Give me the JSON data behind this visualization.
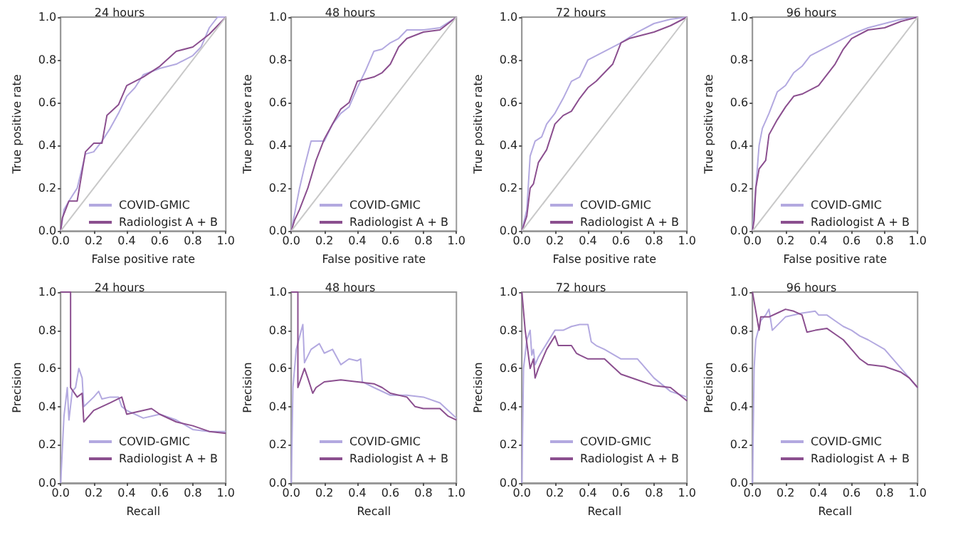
{
  "chart_data": [
    {
      "type": "line",
      "title": "24 hours",
      "xlabel": "False positive rate",
      "ylabel": "True positive rate",
      "xlim": [
        0,
        1
      ],
      "ylim": [
        0,
        1
      ],
      "xticks": [
        {
          "value": 0,
          "label": "0.0"
        },
        {
          "value": 0.2,
          "label": "0.2"
        },
        {
          "value": 0.4,
          "label": "0.4"
        },
        {
          "value": 0.6,
          "label": "0.6"
        },
        {
          "value": 0.8,
          "label": "0.8"
        },
        {
          "value": 1,
          "label": "1.0"
        }
      ],
      "yticks": [
        {
          "value": 0,
          "label": "0.0"
        },
        {
          "value": 0.2,
          "label": "0.2"
        },
        {
          "value": 0.4,
          "label": "0.4"
        },
        {
          "value": 0.6,
          "label": "0.6"
        },
        {
          "value": 0.8,
          "label": "0.8"
        },
        {
          "value": 1,
          "label": "1.0"
        }
      ],
      "legend": "bottom right",
      "grid": false,
      "series": [
        {
          "name": "COVID-GMIC",
          "color": "#b3a9e0",
          "x": [
            0,
            0.02,
            0.05,
            0.1,
            0.15,
            0.2,
            0.25,
            0.3,
            0.35,
            0.4,
            0.45,
            0.5,
            0.6,
            0.7,
            0.8,
            0.85,
            0.9,
            0.95,
            1
          ],
          "values": [
            0,
            0.1,
            0.14,
            0.2,
            0.36,
            0.37,
            0.42,
            0.48,
            0.55,
            0.63,
            0.67,
            0.73,
            0.76,
            0.78,
            0.82,
            0.86,
            0.95,
            1,
            1
          ]
        },
        {
          "name": "Radiologist A + B",
          "color": "#8b4f8f",
          "x": [
            0,
            0.01,
            0.05,
            0.1,
            0.15,
            0.2,
            0.25,
            0.28,
            0.35,
            0.4,
            0.5,
            0.6,
            0.7,
            0.8,
            0.9,
            0.95,
            1
          ],
          "values": [
            0,
            0.06,
            0.14,
            0.14,
            0.37,
            0.41,
            0.41,
            0.54,
            0.59,
            0.68,
            0.72,
            0.77,
            0.84,
            0.86,
            0.92,
            0.96,
            1
          ]
        },
        {
          "color": "#c8c8c8",
          "x": [
            0,
            1
          ],
          "values": [
            0,
            1
          ]
        }
      ]
    },
    {
      "type": "line",
      "title": "48 hours",
      "xlabel": "False positive rate",
      "ylabel": "True positive rate",
      "xlim": [
        0,
        1
      ],
      "ylim": [
        0,
        1
      ],
      "xticks": [
        {
          "value": 0,
          "label": "0.0"
        },
        {
          "value": 0.2,
          "label": "0.2"
        },
        {
          "value": 0.4,
          "label": "0.4"
        },
        {
          "value": 0.6,
          "label": "0.6"
        },
        {
          "value": 0.8,
          "label": "0.8"
        },
        {
          "value": 1,
          "label": "1.0"
        }
      ],
      "yticks": [
        {
          "value": 0,
          "label": "0.0"
        },
        {
          "value": 0.2,
          "label": "0.2"
        },
        {
          "value": 0.4,
          "label": "0.4"
        },
        {
          "value": 0.6,
          "label": "0.6"
        },
        {
          "value": 0.8,
          "label": "0.8"
        },
        {
          "value": 1,
          "label": "1.0"
        }
      ],
      "legend": "bottom right",
      "grid": false,
      "series": [
        {
          "name": "COVID-GMIC",
          "color": "#b3a9e0",
          "x": [
            0,
            0.02,
            0.05,
            0.08,
            0.12,
            0.2,
            0.25,
            0.3,
            0.35,
            0.4,
            0.45,
            0.5,
            0.55,
            0.6,
            0.65,
            0.7,
            0.8,
            0.9,
            1
          ],
          "values": [
            0,
            0.08,
            0.2,
            0.3,
            0.42,
            0.42,
            0.5,
            0.55,
            0.58,
            0.67,
            0.75,
            0.84,
            0.85,
            0.88,
            0.9,
            0.94,
            0.94,
            0.95,
            1
          ]
        },
        {
          "name": "Radiologist A + B",
          "color": "#8b4f8f",
          "x": [
            0,
            0.02,
            0.05,
            0.1,
            0.15,
            0.2,
            0.25,
            0.3,
            0.35,
            0.4,
            0.5,
            0.55,
            0.6,
            0.65,
            0.7,
            0.8,
            0.9,
            1
          ],
          "values": [
            0,
            0.05,
            0.1,
            0.2,
            0.33,
            0.43,
            0.5,
            0.57,
            0.6,
            0.7,
            0.72,
            0.74,
            0.78,
            0.86,
            0.9,
            0.93,
            0.94,
            1
          ]
        },
        {
          "color": "#c8c8c8",
          "x": [
            0,
            1
          ],
          "values": [
            0,
            1
          ]
        }
      ]
    },
    {
      "type": "line",
      "title": "72 hours",
      "xlabel": "False positive rate",
      "ylabel": "True positive rate",
      "xlim": [
        0,
        1
      ],
      "ylim": [
        0,
        1
      ],
      "xticks": [
        {
          "value": 0,
          "label": "0.0"
        },
        {
          "value": 0.2,
          "label": "0.2"
        },
        {
          "value": 0.4,
          "label": "0.4"
        },
        {
          "value": 0.6,
          "label": "0.6"
        },
        {
          "value": 0.8,
          "label": "0.8"
        },
        {
          "value": 1,
          "label": "1.0"
        }
      ],
      "yticks": [
        {
          "value": 0,
          "label": "0.0"
        },
        {
          "value": 0.2,
          "label": "0.2"
        },
        {
          "value": 0.4,
          "label": "0.4"
        },
        {
          "value": 0.6,
          "label": "0.6"
        },
        {
          "value": 0.8,
          "label": "0.8"
        },
        {
          "value": 1,
          "label": "1.0"
        }
      ],
      "legend": "bottom right",
      "grid": false,
      "series": [
        {
          "name": "COVID-GMIC",
          "color": "#b3a9e0",
          "x": [
            0,
            0.03,
            0.05,
            0.08,
            0.12,
            0.15,
            0.2,
            0.25,
            0.3,
            0.35,
            0.4,
            0.5,
            0.6,
            0.7,
            0.8,
            0.9,
            1
          ],
          "values": [
            0,
            0.1,
            0.35,
            0.42,
            0.44,
            0.5,
            0.55,
            0.62,
            0.7,
            0.72,
            0.8,
            0.84,
            0.88,
            0.93,
            0.97,
            0.99,
            1
          ]
        },
        {
          "name": "Radiologist A + B",
          "color": "#8b4f8f",
          "x": [
            0,
            0.03,
            0.05,
            0.07,
            0.1,
            0.15,
            0.2,
            0.25,
            0.3,
            0.35,
            0.4,
            0.45,
            0.5,
            0.55,
            0.6,
            0.65,
            0.7,
            0.8,
            0.9,
            1
          ],
          "values": [
            0,
            0.07,
            0.2,
            0.22,
            0.32,
            0.38,
            0.5,
            0.54,
            0.56,
            0.62,
            0.67,
            0.7,
            0.74,
            0.78,
            0.88,
            0.9,
            0.91,
            0.93,
            0.96,
            1
          ]
        },
        {
          "color": "#c8c8c8",
          "x": [
            0,
            1
          ],
          "values": [
            0,
            1
          ]
        }
      ]
    },
    {
      "type": "line",
      "title": "96 hours",
      "xlabel": "False positive rate",
      "ylabel": "True positive rate",
      "xlim": [
        0,
        1
      ],
      "ylim": [
        0,
        1
      ],
      "xticks": [
        {
          "value": 0,
          "label": "0.0"
        },
        {
          "value": 0.2,
          "label": "0.2"
        },
        {
          "value": 0.4,
          "label": "0.4"
        },
        {
          "value": 0.6,
          "label": "0.6"
        },
        {
          "value": 0.8,
          "label": "0.8"
        },
        {
          "value": 1,
          "label": "1.0"
        }
      ],
      "yticks": [
        {
          "value": 0,
          "label": "0.0"
        },
        {
          "value": 0.2,
          "label": "0.2"
        },
        {
          "value": 0.4,
          "label": "0.4"
        },
        {
          "value": 0.6,
          "label": "0.6"
        },
        {
          "value": 0.8,
          "label": "0.8"
        },
        {
          "value": 1,
          "label": "1.0"
        }
      ],
      "legend": "bottom right",
      "grid": false,
      "series": [
        {
          "name": "COVID-GMIC",
          "color": "#b3a9e0",
          "x": [
            0,
            0.01,
            0.02,
            0.04,
            0.06,
            0.1,
            0.15,
            0.2,
            0.25,
            0.3,
            0.35,
            0.4,
            0.5,
            0.6,
            0.7,
            0.8,
            0.9,
            1
          ],
          "values": [
            0,
            0.1,
            0.2,
            0.4,
            0.48,
            0.55,
            0.65,
            0.68,
            0.74,
            0.77,
            0.82,
            0.84,
            0.88,
            0.92,
            0.95,
            0.97,
            0.99,
            1
          ]
        },
        {
          "name": "Radiologist A + B",
          "color": "#8b4f8f",
          "x": [
            0,
            0.01,
            0.02,
            0.04,
            0.08,
            0.1,
            0.15,
            0.2,
            0.25,
            0.3,
            0.35,
            0.4,
            0.45,
            0.5,
            0.55,
            0.6,
            0.7,
            0.8,
            0.9,
            1
          ],
          "values": [
            0,
            0.05,
            0.2,
            0.29,
            0.33,
            0.45,
            0.52,
            0.58,
            0.63,
            0.64,
            0.66,
            0.68,
            0.73,
            0.78,
            0.85,
            0.9,
            0.94,
            0.95,
            0.98,
            1
          ]
        },
        {
          "color": "#c8c8c8",
          "x": [
            0,
            1
          ],
          "values": [
            0,
            1
          ]
        }
      ]
    },
    {
      "type": "line",
      "title": "24 hours",
      "xlabel": "Recall",
      "ylabel": "Precision",
      "xlim": [
        0,
        1
      ],
      "ylim": [
        0,
        1
      ],
      "xticks": [
        {
          "value": 0,
          "label": "0.0"
        },
        {
          "value": 0.2,
          "label": "0.2"
        },
        {
          "value": 0.4,
          "label": "0.4"
        },
        {
          "value": 0.6,
          "label": "0.6"
        },
        {
          "value": 0.8,
          "label": "0.8"
        },
        {
          "value": 1,
          "label": "1.0"
        }
      ],
      "yticks": [
        {
          "value": 0,
          "label": "0.0"
        },
        {
          "value": 0.2,
          "label": "0.2"
        },
        {
          "value": 0.4,
          "label": "0.4"
        },
        {
          "value": 0.6,
          "label": "0.6"
        },
        {
          "value": 0.8,
          "label": "0.8"
        },
        {
          "value": 1,
          "label": "1.0"
        }
      ],
      "legend": "bottom right",
      "grid": false,
      "series": [
        {
          "name": "COVID-GMIC",
          "color": "#b3a9e0",
          "x": [
            0,
            0.02,
            0.04,
            0.05,
            0.07,
            0.09,
            0.11,
            0.13,
            0.14,
            0.2,
            0.23,
            0.25,
            0.3,
            0.35,
            0.37,
            0.4,
            0.5,
            0.6,
            0.7,
            0.8,
            0.9,
            1
          ],
          "values": [
            0,
            0.35,
            0.5,
            0.33,
            0.48,
            0.5,
            0.6,
            0.55,
            0.4,
            0.45,
            0.48,
            0.44,
            0.45,
            0.45,
            0.4,
            0.38,
            0.34,
            0.36,
            0.33,
            0.28,
            0.27,
            0.27
          ]
        },
        {
          "name": "Radiologist A + B",
          "color": "#8b4f8f",
          "x": [
            0,
            0.06,
            0.06,
            0.1,
            0.13,
            0.14,
            0.2,
            0.3,
            0.37,
            0.4,
            0.45,
            0.55,
            0.6,
            0.7,
            0.8,
            0.9,
            1
          ],
          "values": [
            1,
            1,
            0.5,
            0.45,
            0.47,
            0.32,
            0.38,
            0.42,
            0.45,
            0.36,
            0.37,
            0.39,
            0.36,
            0.32,
            0.3,
            0.27,
            0.26
          ]
        }
      ]
    },
    {
      "type": "line",
      "title": "48 hours",
      "xlabel": "Recall",
      "ylabel": "Precision",
      "xlim": [
        0,
        1
      ],
      "ylim": [
        0,
        1
      ],
      "xticks": [
        {
          "value": 0,
          "label": "0.0"
        },
        {
          "value": 0.2,
          "label": "0.2"
        },
        {
          "value": 0.4,
          "label": "0.4"
        },
        {
          "value": 0.6,
          "label": "0.6"
        },
        {
          "value": 0.8,
          "label": "0.8"
        },
        {
          "value": 1,
          "label": "1.0"
        }
      ],
      "yticks": [
        {
          "value": 0,
          "label": "0.0"
        },
        {
          "value": 0.2,
          "label": "0.2"
        },
        {
          "value": 0.4,
          "label": "0.4"
        },
        {
          "value": 0.6,
          "label": "0.6"
        },
        {
          "value": 0.8,
          "label": "0.8"
        },
        {
          "value": 1,
          "label": "1.0"
        }
      ],
      "legend": "bottom right",
      "grid": false,
      "series": [
        {
          "name": "COVID-GMIC",
          "color": "#b3a9e0",
          "x": [
            0,
            0.01,
            0.03,
            0.07,
            0.08,
            0.12,
            0.17,
            0.2,
            0.25,
            0.3,
            0.35,
            0.4,
            0.42,
            0.43,
            0.5,
            0.6,
            0.7,
            0.8,
            0.9,
            0.95,
            1
          ],
          "values": [
            0,
            0.5,
            0.7,
            0.83,
            0.63,
            0.7,
            0.73,
            0.68,
            0.7,
            0.62,
            0.65,
            0.64,
            0.65,
            0.53,
            0.5,
            0.46,
            0.46,
            0.45,
            0.42,
            0.38,
            0.34
          ]
        },
        {
          "name": "Radiologist A + B",
          "color": "#8b4f8f",
          "x": [
            0,
            0.04,
            0.04,
            0.08,
            0.1,
            0.13,
            0.15,
            0.2,
            0.3,
            0.4,
            0.5,
            0.55,
            0.6,
            0.7,
            0.75,
            0.8,
            0.9,
            0.95,
            1
          ],
          "values": [
            1,
            1,
            0.5,
            0.6,
            0.55,
            0.47,
            0.5,
            0.53,
            0.54,
            0.53,
            0.52,
            0.5,
            0.47,
            0.45,
            0.4,
            0.39,
            0.39,
            0.35,
            0.33
          ]
        }
      ]
    },
    {
      "type": "line",
      "title": "72 hours",
      "xlabel": "Recall",
      "ylabel": "Precision",
      "xlim": [
        0,
        1
      ],
      "ylim": [
        0,
        1
      ],
      "xticks": [
        {
          "value": 0,
          "label": "0.0"
        },
        {
          "value": 0.2,
          "label": "0.2"
        },
        {
          "value": 0.4,
          "label": "0.4"
        },
        {
          "value": 0.6,
          "label": "0.6"
        },
        {
          "value": 0.8,
          "label": "0.8"
        },
        {
          "value": 1,
          "label": "1.0"
        }
      ],
      "yticks": [
        {
          "value": 0,
          "label": "0.0"
        },
        {
          "value": 0.2,
          "label": "0.2"
        },
        {
          "value": 0.4,
          "label": "0.4"
        },
        {
          "value": 0.6,
          "label": "0.6"
        },
        {
          "value": 0.8,
          "label": "0.8"
        },
        {
          "value": 1,
          "label": "1.0"
        }
      ],
      "legend": "bottom right",
      "grid": false,
      "series": [
        {
          "name": "COVID-GMIC",
          "color": "#b3a9e0",
          "x": [
            0,
            0.01,
            0.03,
            0.05,
            0.06,
            0.07,
            0.08,
            0.1,
            0.15,
            0.2,
            0.25,
            0.3,
            0.35,
            0.4,
            0.42,
            0.45,
            0.5,
            0.6,
            0.7,
            0.8,
            0.9,
            1
          ],
          "values": [
            0,
            0.6,
            0.75,
            0.8,
            0.67,
            0.7,
            0.62,
            0.66,
            0.73,
            0.8,
            0.8,
            0.82,
            0.83,
            0.83,
            0.74,
            0.72,
            0.7,
            0.65,
            0.65,
            0.55,
            0.48,
            0.45
          ]
        },
        {
          "name": "Radiologist A + B",
          "color": "#8b4f8f",
          "x": [
            0,
            0.02,
            0.05,
            0.07,
            0.08,
            0.1,
            0.15,
            0.2,
            0.22,
            0.3,
            0.33,
            0.35,
            0.4,
            0.5,
            0.6,
            0.7,
            0.8,
            0.9,
            1
          ],
          "values": [
            1,
            0.8,
            0.6,
            0.65,
            0.55,
            0.6,
            0.7,
            0.77,
            0.72,
            0.72,
            0.68,
            0.67,
            0.65,
            0.65,
            0.57,
            0.54,
            0.51,
            0.5,
            0.43
          ]
        }
      ]
    },
    {
      "type": "line",
      "title": "96 hours",
      "xlabel": "Recall",
      "ylabel": "Precision",
      "xlim": [
        0,
        1
      ],
      "ylim": [
        0,
        1
      ],
      "xticks": [
        {
          "value": 0,
          "label": "0.0"
        },
        {
          "value": 0.2,
          "label": "0.2"
        },
        {
          "value": 0.4,
          "label": "0.4"
        },
        {
          "value": 0.6,
          "label": "0.6"
        },
        {
          "value": 0.8,
          "label": "0.8"
        },
        {
          "value": 1,
          "label": "1.0"
        }
      ],
      "yticks": [
        {
          "value": 0,
          "label": "0.0"
        },
        {
          "value": 0.2,
          "label": "0.2"
        },
        {
          "value": 0.4,
          "label": "0.4"
        },
        {
          "value": 0.6,
          "label": "0.6"
        },
        {
          "value": 0.8,
          "label": "0.8"
        },
        {
          "value": 1,
          "label": "1.0"
        }
      ],
      "legend": "bottom right",
      "grid": false,
      "series": [
        {
          "name": "COVID-GMIC",
          "color": "#b3a9e0",
          "x": [
            0,
            0.01,
            0.02,
            0.05,
            0.08,
            0.1,
            0.12,
            0.2,
            0.3,
            0.38,
            0.4,
            0.45,
            0.5,
            0.55,
            0.6,
            0.65,
            0.7,
            0.8,
            0.9,
            0.95,
            1
          ],
          "values": [
            0,
            0.6,
            0.75,
            0.85,
            0.88,
            0.91,
            0.8,
            0.87,
            0.89,
            0.9,
            0.88,
            0.88,
            0.85,
            0.82,
            0.8,
            0.77,
            0.75,
            0.7,
            0.6,
            0.55,
            0.5
          ]
        },
        {
          "name": "Radiologist A + B",
          "color": "#8b4f8f",
          "x": [
            0,
            0.01,
            0.04,
            0.05,
            0.1,
            0.15,
            0.2,
            0.25,
            0.3,
            0.33,
            0.38,
            0.45,
            0.5,
            0.55,
            0.6,
            0.65,
            0.7,
            0.8,
            0.9,
            0.95,
            1
          ],
          "values": [
            1,
            0.95,
            0.8,
            0.87,
            0.87,
            0.89,
            0.91,
            0.9,
            0.88,
            0.79,
            0.8,
            0.81,
            0.78,
            0.75,
            0.7,
            0.65,
            0.62,
            0.61,
            0.58,
            0.55,
            0.5
          ]
        }
      ]
    }
  ]
}
